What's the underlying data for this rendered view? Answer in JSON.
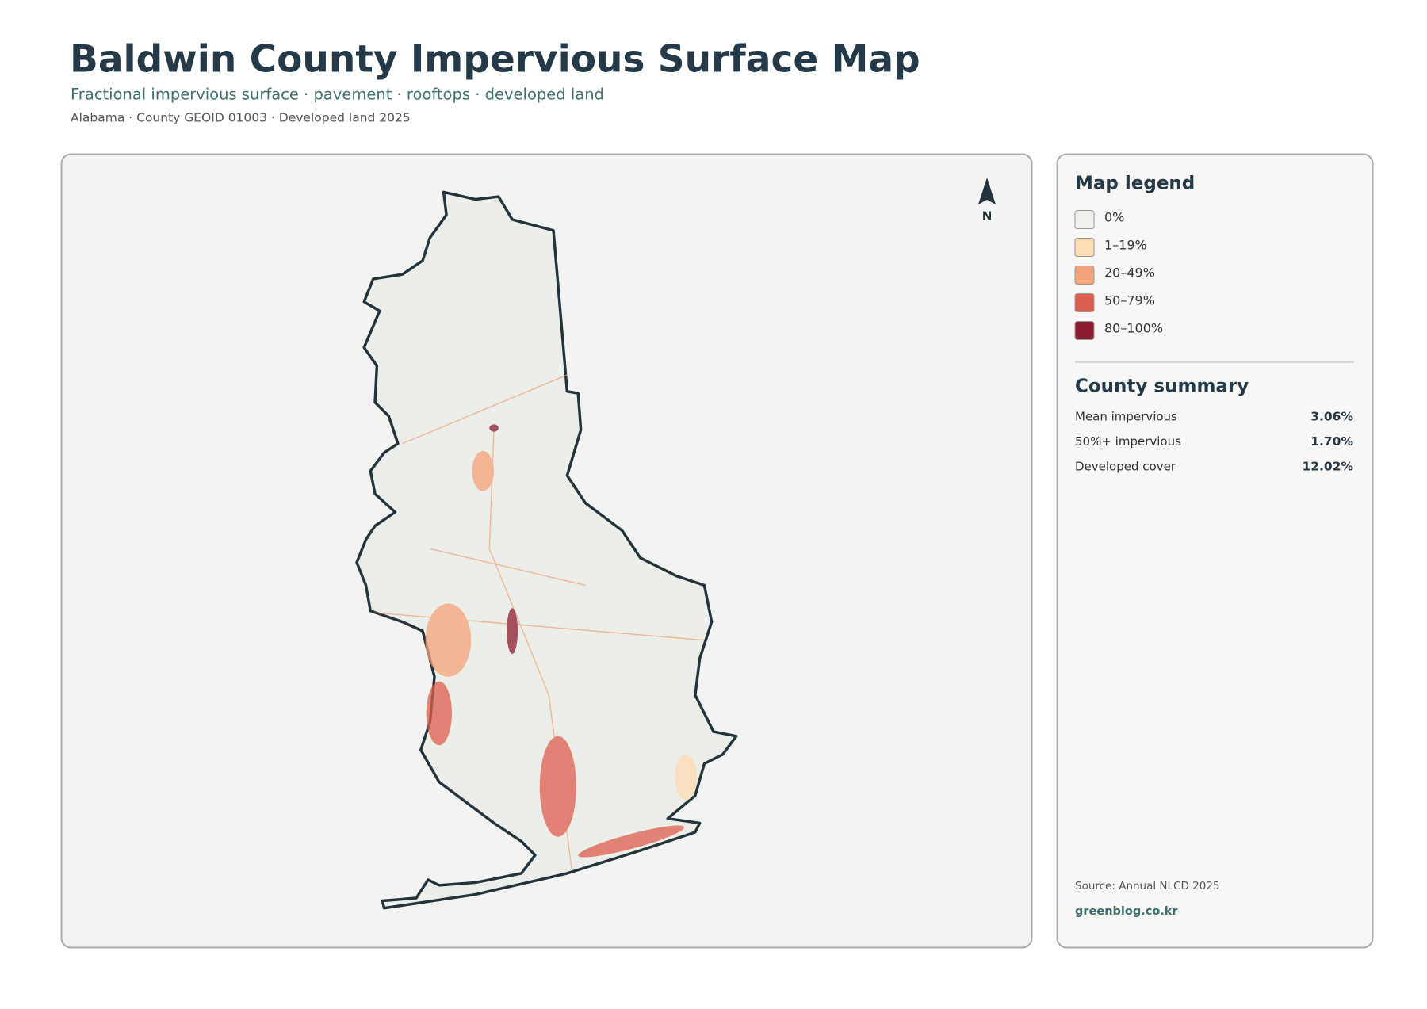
{
  "header": {
    "title": "Baldwin County Impervious Surface Map",
    "subtitle": "Fractional impervious surface · pavement · rooftops · developed land",
    "meta": "Alabama · County GEOID 01003 · Developed land 2025"
  },
  "map": {
    "north_label": "N"
  },
  "legend": {
    "title": "Map legend",
    "items": [
      {
        "label": "0%",
        "color": "#f0f0ec"
      },
      {
        "label": "1–19%",
        "color": "#fddcb4"
      },
      {
        "label": "20–49%",
        "color": "#f4a47c"
      },
      {
        "label": "50–79%",
        "color": "#de5f4e"
      },
      {
        "label": "80–100%",
        "color": "#8c1c32"
      }
    ]
  },
  "summary": {
    "title": "County summary",
    "rows": [
      {
        "label": "Mean impervious",
        "value": "3.06%"
      },
      {
        "label": "50%+ impervious",
        "value": "1.70%"
      },
      {
        "label": "Developed cover",
        "value": "12.02%"
      }
    ]
  },
  "footer": {
    "source": "Source: Annual NLCD 2025",
    "site": "greenblog.co.kr"
  }
}
